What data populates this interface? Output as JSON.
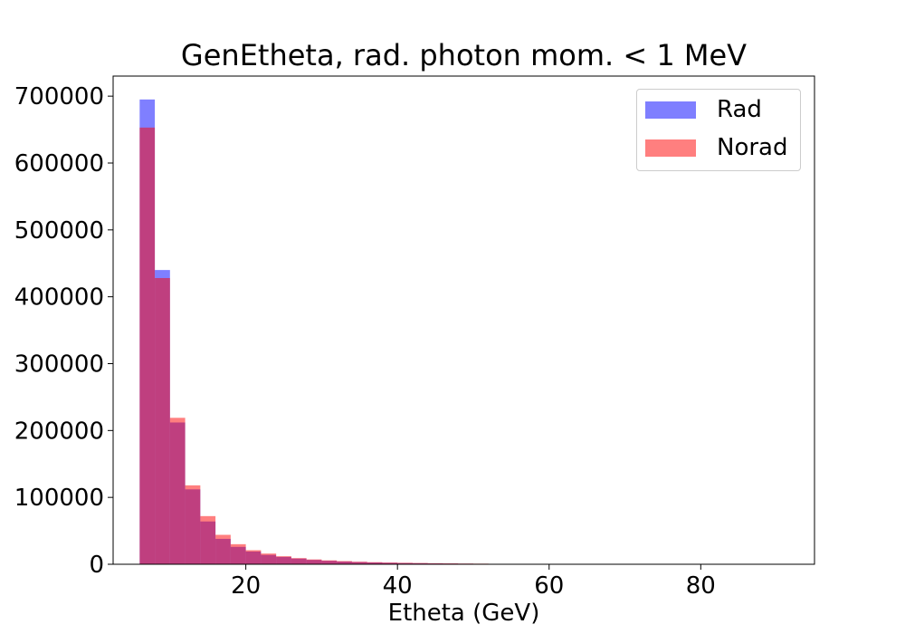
{
  "chart_data": {
    "type": "bar",
    "title": "GenEtheta, rad. photon mom. < 1 MeV",
    "xlabel": "Etheta (GeV)",
    "ylabel": "",
    "xlim": [
      2.5,
      95
    ],
    "ylim": [
      0,
      730000
    ],
    "xticks": [
      20,
      40,
      60,
      80
    ],
    "yticks": [
      0,
      100000,
      200000,
      300000,
      400000,
      500000,
      600000,
      700000
    ],
    "legend_position": "top-right",
    "grid": false,
    "bin_edges": [
      6,
      8,
      10,
      12,
      14,
      16,
      18,
      20,
      22,
      24,
      26,
      28,
      30,
      32,
      34,
      36,
      38,
      40,
      42,
      44,
      46,
      48,
      50,
      52
    ],
    "series": [
      {
        "name": "Rad",
        "color": "#0000ff",
        "alpha": 0.5,
        "values": [
          695000,
          440000,
          212000,
          112000,
          64000,
          38000,
          26000,
          19000,
          14000,
          11000,
          8500,
          6500,
          5200,
          4100,
          3300,
          2700,
          2200,
          1800,
          1500,
          1200,
          1000,
          800,
          650
        ]
      },
      {
        "name": "Norad",
        "color": "#ff0000",
        "alpha": 0.5,
        "values": [
          653000,
          428000,
          219000,
          118000,
          72000,
          44000,
          30000,
          21000,
          16000,
          12000,
          9200,
          7200,
          5800,
          4700,
          3800,
          3100,
          2600,
          2200,
          1900,
          1600,
          1350,
          1100,
          900
        ]
      }
    ]
  }
}
